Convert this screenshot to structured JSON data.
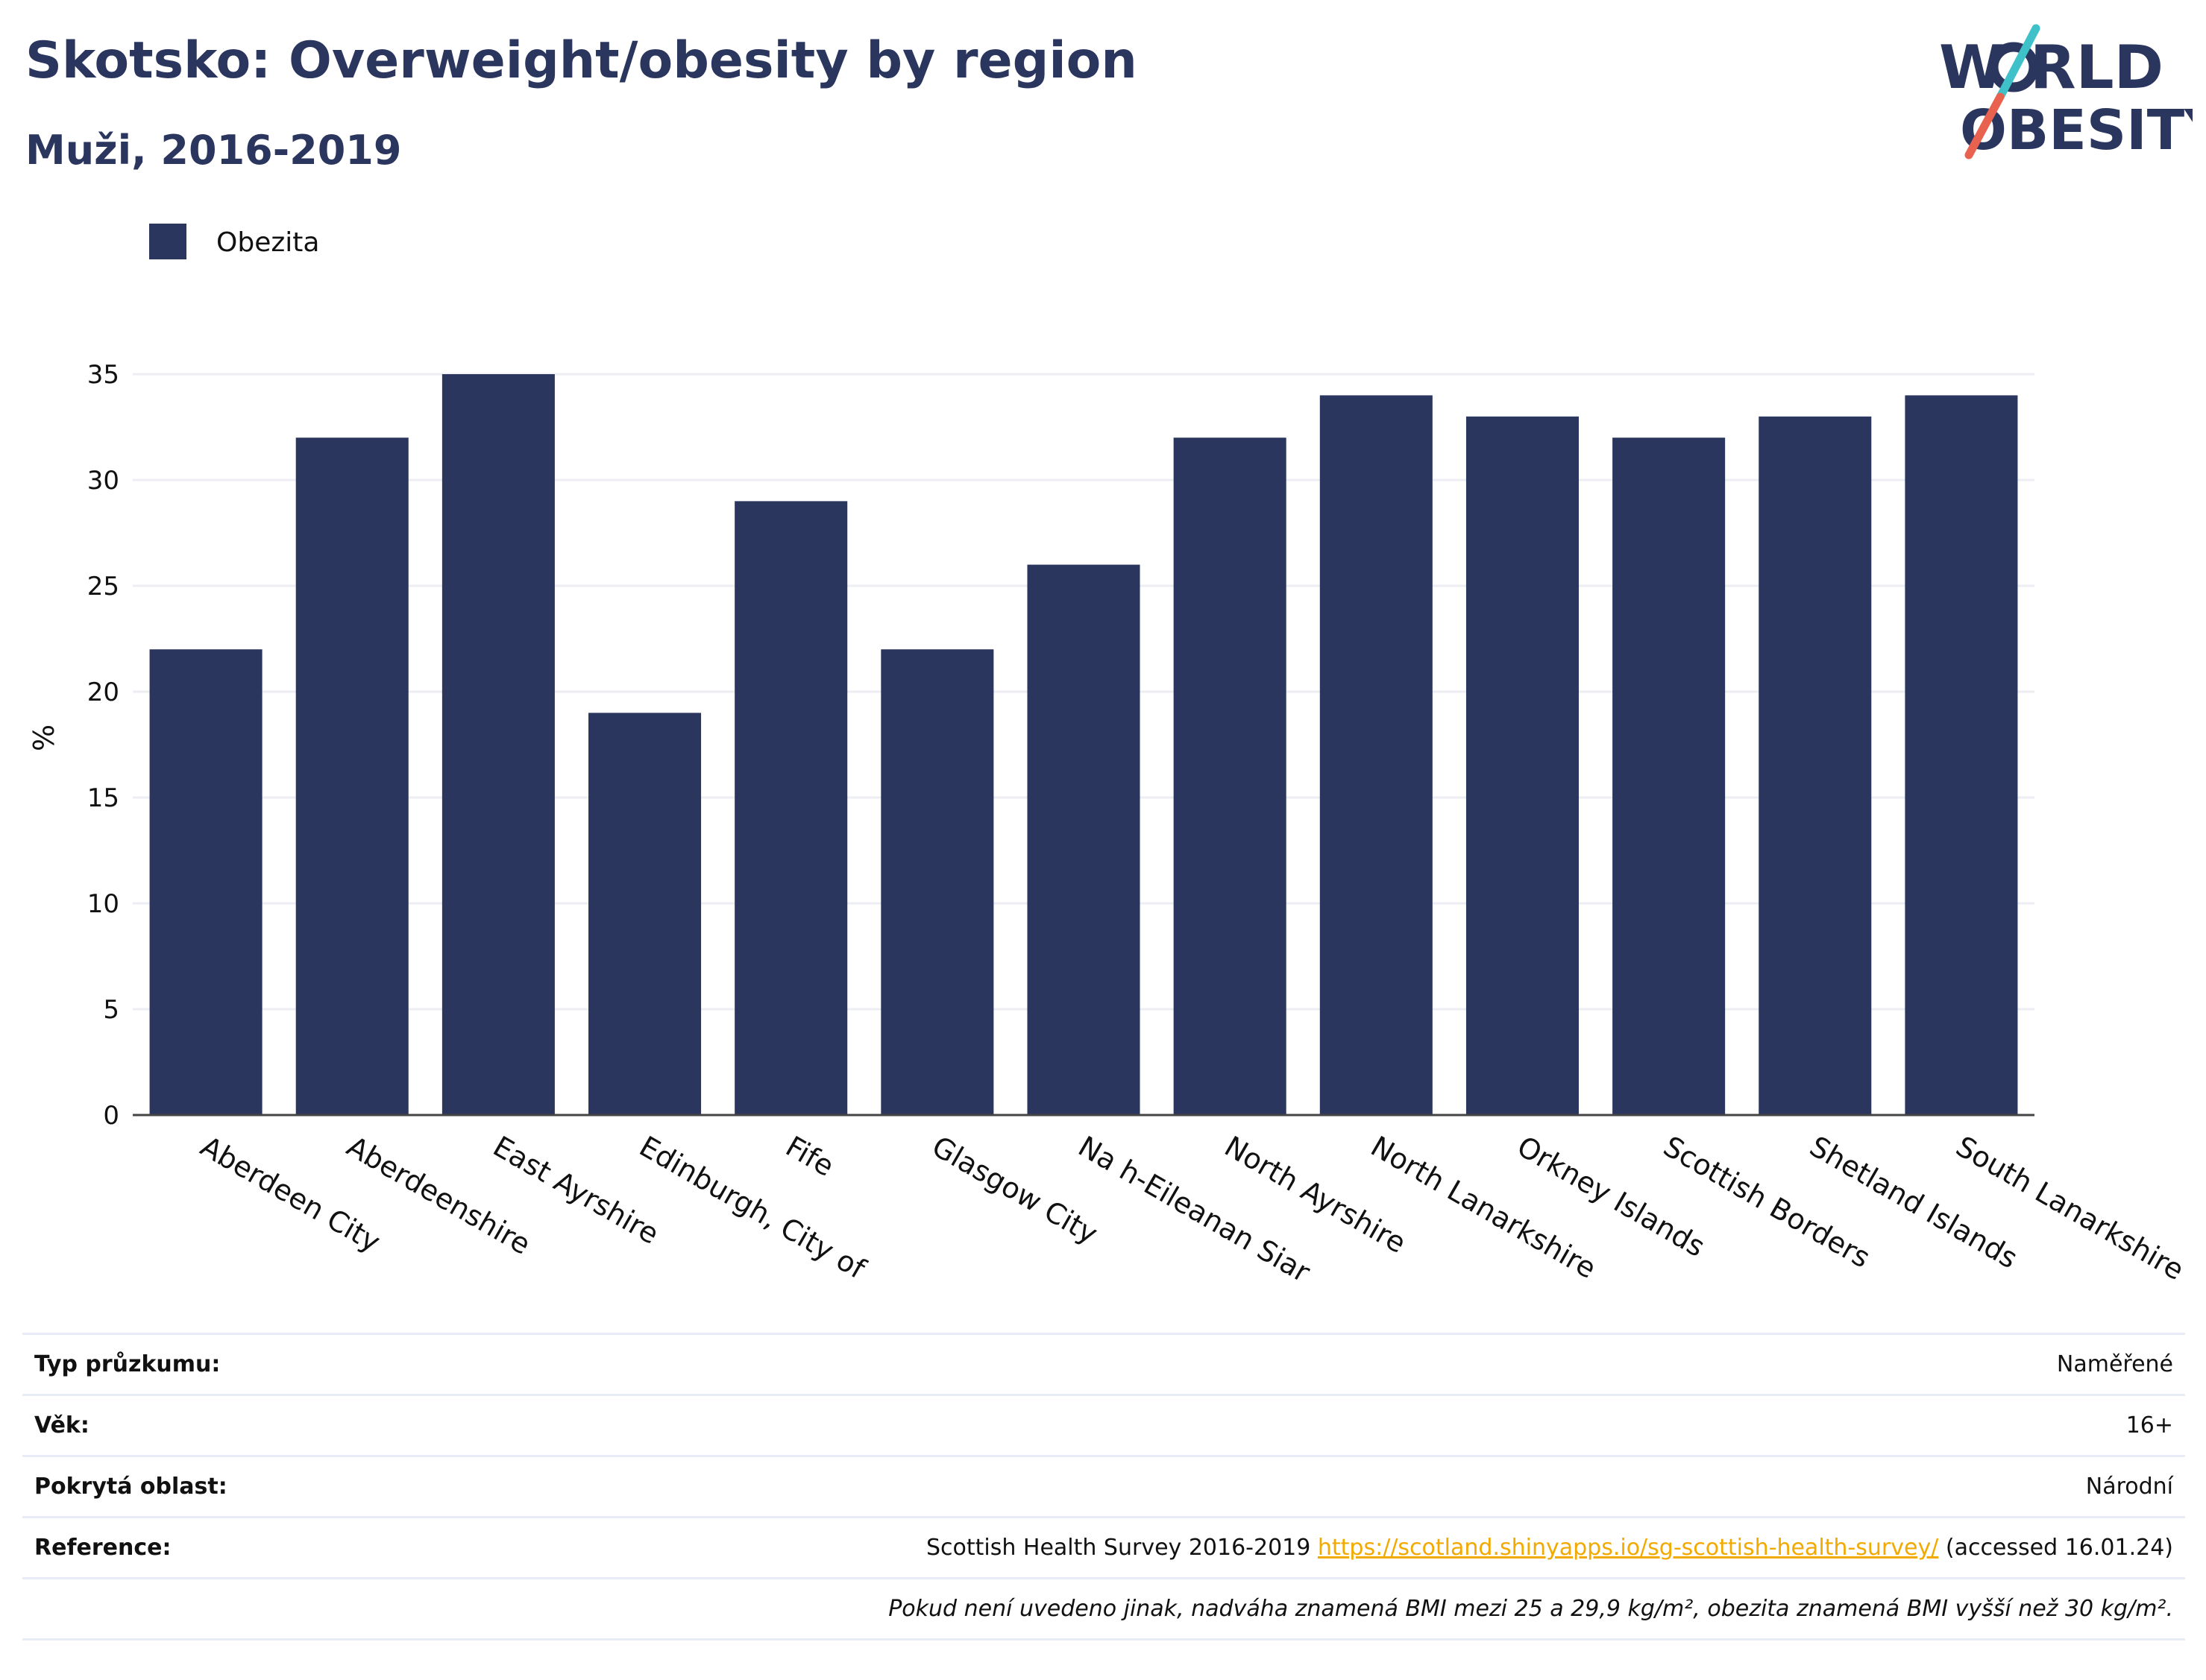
{
  "header": {
    "title": "Skotsko: Overweight/obesity by region",
    "subtitle": "Muži, 2016-2019"
  },
  "logo": {
    "line1": "W",
    "line1_rest": "RLD",
    "line2": "OBESITY",
    "colors": {
      "text": "#2b365f",
      "slash_top": "#3fc1c9",
      "slash_bottom": "#e8624f"
    }
  },
  "chart_data": {
    "type": "bar",
    "categories": [
      "Aberdeen City",
      "Aberdeenshire",
      "East Ayrshire",
      "Edinburgh, City of",
      "Fife",
      "Glasgow City",
      "Na h-Eileanan Siar",
      "North Ayrshire",
      "North Lanarkshire",
      "Orkney Islands",
      "Scottish Borders",
      "Shetland Islands",
      "South Lanarkshire"
    ],
    "series": [
      {
        "name": "Obezita",
        "values": [
          22,
          32,
          35,
          19,
          29,
          22,
          26,
          32,
          34,
          33,
          32,
          33,
          34
        ],
        "color": "#2b365f"
      }
    ],
    "ylabel": "%",
    "ylim": [
      0,
      35
    ],
    "yticks": [
      0,
      5,
      10,
      15,
      20,
      25,
      30,
      35
    ],
    "grid": true,
    "legend": "top-left"
  },
  "info": {
    "rows": [
      {
        "label": "Typ průzkumu:",
        "value": "Naměřené"
      },
      {
        "label": "Věk:",
        "value": "16+"
      },
      {
        "label": "Pokrytá oblast:",
        "value": "Národní"
      }
    ],
    "reference": {
      "label": "Reference:",
      "text": "Scottish Health Survey 2016-2019",
      "link": "https://scotland.shinyapps.io/sg-scottish-health-survey/",
      "suffix": "(accessed 16.01.24)"
    },
    "note": "Pokud není uvedeno jinak, nadváha znamená BMI mezi 25 a 29,9 kg/m², obezita znamená BMI vyšší než 30 kg/m²."
  }
}
